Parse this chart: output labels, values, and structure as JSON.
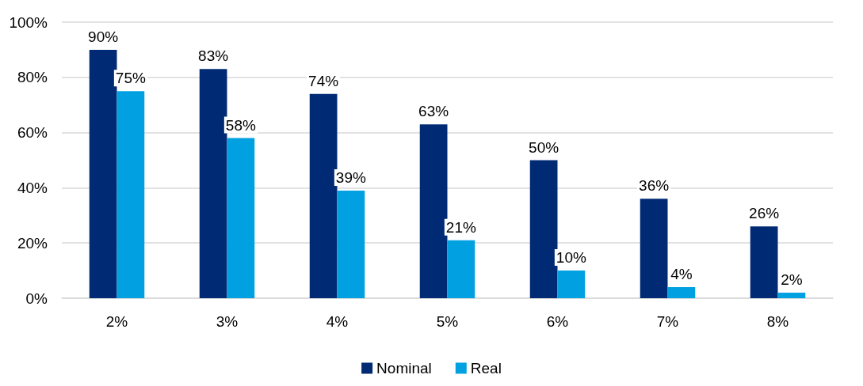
{
  "chart_data": {
    "type": "bar",
    "categories": [
      "2%",
      "3%",
      "4%",
      "5%",
      "6%",
      "7%",
      "8%"
    ],
    "series": [
      {
        "name": "Nominal",
        "color": "#012a74",
        "values": [
          90,
          83,
          74,
          63,
          50,
          36,
          26
        ],
        "value_labels": [
          "90%",
          "83%",
          "74%",
          "63%",
          "50%",
          "36%",
          "26%"
        ]
      },
      {
        "name": "Real",
        "color": "#01a0e0",
        "values": [
          75,
          58,
          39,
          21,
          10,
          4,
          2
        ],
        "value_labels": [
          "75%",
          "58%",
          "39%",
          "21%",
          "10%",
          "4%",
          "2%"
        ]
      }
    ],
    "ylim": [
      0,
      100
    ],
    "yticks": [
      {
        "value": 0,
        "label": "0%"
      },
      {
        "value": 20,
        "label": "20%"
      },
      {
        "value": 40,
        "label": "40%"
      },
      {
        "value": 60,
        "label": "60%"
      },
      {
        "value": 80,
        "label": "80%"
      },
      {
        "value": 100,
        "label": "100%"
      }
    ],
    "grid": "y",
    "legend": "bottom"
  }
}
